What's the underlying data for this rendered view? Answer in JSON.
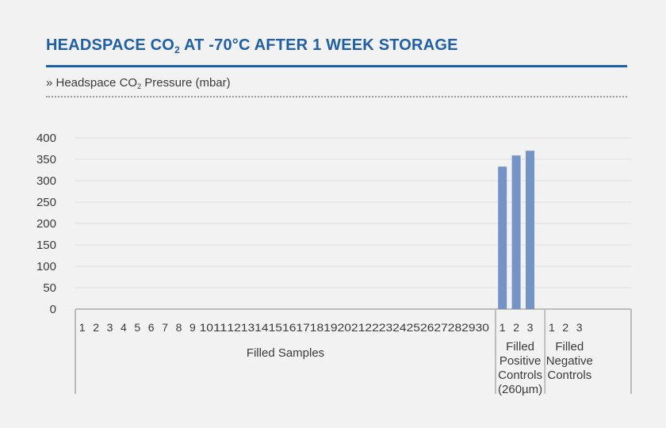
{
  "header": {
    "title_before": "HEADSPACE CO",
    "title_sub": "2",
    "title_after": " AT -70°C AFTER 1 WEEK STORAGE",
    "subtitle_before": "» Headspace CO",
    "subtitle_sub": "2",
    "subtitle_after": " Pressure (mbar)"
  },
  "colors": {
    "title": "#1f5fa6",
    "bar": "#7494c6",
    "grid": "#dedede",
    "axis": "#bdbdbd",
    "text": "#3a3a3a"
  },
  "chart_data": {
    "type": "bar",
    "ylim": [
      0,
      400
    ],
    "yticks": [
      0,
      50,
      100,
      150,
      200,
      250,
      300,
      350,
      400
    ],
    "grid": true,
    "legend": "none",
    "groups": [
      {
        "label_lines": [
          "Filled Samples"
        ],
        "categories": [
          "1",
          "2",
          "3",
          "4",
          "5",
          "6",
          "7",
          "8",
          "9",
          "10",
          "11",
          "12",
          "13",
          "14",
          "15",
          "16",
          "17",
          "18",
          "19",
          "20",
          "21",
          "22",
          "23",
          "24",
          "25",
          "26",
          "27",
          "28",
          "29",
          "30"
        ],
        "values": [
          0,
          0,
          0,
          0,
          0,
          0,
          0,
          0,
          0,
          0,
          0,
          0,
          0,
          0,
          0,
          0,
          0,
          0,
          0,
          0,
          0,
          0,
          0,
          0,
          0,
          0,
          0,
          0,
          0,
          0
        ]
      },
      {
        "label_lines": [
          "Filled",
          "Positive",
          "Controls",
          "(260µm)"
        ],
        "categories": [
          "1",
          "2",
          "3"
        ],
        "values": [
          333,
          359,
          370
        ]
      },
      {
        "label_lines": [
          "Filled",
          "Negative",
          "Controls"
        ],
        "categories": [
          "1",
          "2",
          "3"
        ],
        "values": [
          0,
          0,
          0
        ]
      }
    ]
  }
}
